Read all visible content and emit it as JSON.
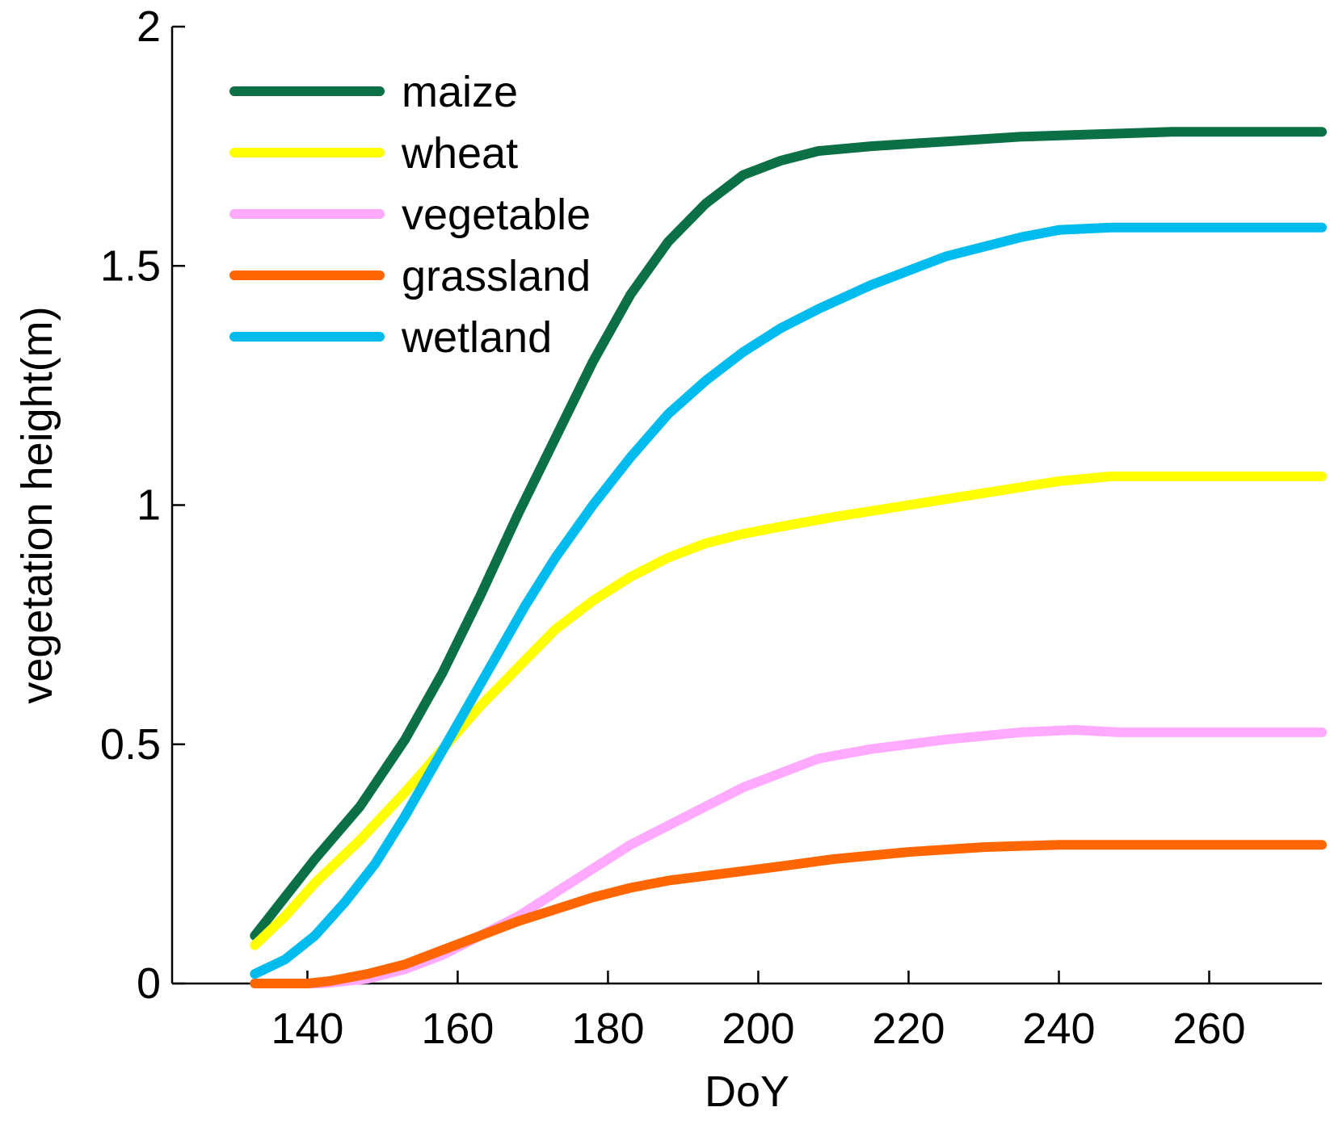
{
  "chart_data": {
    "type": "line",
    "title": "",
    "xlabel": "DoY",
    "ylabel": "vegetation height(m)",
    "xlim": [
      122,
      275
    ],
    "ylim": [
      0,
      2
    ],
    "xticks": [
      140,
      160,
      180,
      200,
      220,
      240,
      260
    ],
    "yticks": [
      0,
      0.5,
      1,
      1.5,
      2
    ],
    "ytick_labels": [
      "0",
      "0.5",
      "1",
      "1.5",
      "2"
    ],
    "legend_position": "top-left",
    "series": [
      {
        "name": "maize",
        "color": "#0b7045",
        "x": [
          133,
          137,
          141,
          147,
          153,
          158,
          163,
          168,
          173,
          178,
          183,
          188,
          193,
          198,
          203,
          208,
          215,
          225,
          235,
          245,
          255,
          265,
          275
        ],
        "y": [
          0.1,
          0.18,
          0.26,
          0.37,
          0.51,
          0.65,
          0.81,
          0.98,
          1.14,
          1.3,
          1.44,
          1.55,
          1.63,
          1.69,
          1.72,
          1.74,
          1.75,
          1.76,
          1.77,
          1.775,
          1.78,
          1.78,
          1.78
        ]
      },
      {
        "name": "wheat",
        "color": "#ffff00",
        "x": [
          133,
          137,
          141,
          147,
          153,
          158,
          163,
          168,
          173,
          178,
          183,
          188,
          193,
          198,
          203,
          210,
          220,
          230,
          240,
          247,
          255,
          265,
          275
        ],
        "y": [
          0.08,
          0.14,
          0.21,
          0.3,
          0.4,
          0.49,
          0.58,
          0.66,
          0.74,
          0.8,
          0.85,
          0.89,
          0.92,
          0.94,
          0.955,
          0.975,
          1.0,
          1.025,
          1.05,
          1.06,
          1.06,
          1.06,
          1.06
        ]
      },
      {
        "name": "vegetable",
        "color": "#ffaaff",
        "x": [
          133,
          142,
          148,
          153,
          158,
          163,
          168,
          173,
          178,
          183,
          188,
          193,
          198,
          203,
          208,
          215,
          225,
          235,
          242,
          248,
          255,
          265,
          275
        ],
        "y": [
          0.0,
          0.0,
          0.01,
          0.03,
          0.06,
          0.1,
          0.14,
          0.19,
          0.24,
          0.29,
          0.33,
          0.37,
          0.41,
          0.44,
          0.47,
          0.49,
          0.51,
          0.525,
          0.53,
          0.525,
          0.525,
          0.525,
          0.525
        ]
      },
      {
        "name": "grassland",
        "color": "#ff6600",
        "x": [
          133,
          140,
          143,
          148,
          153,
          158,
          163,
          168,
          173,
          178,
          183,
          188,
          193,
          198,
          203,
          210,
          220,
          230,
          240,
          250,
          260,
          275
        ],
        "y": [
          0.0,
          0.0,
          0.005,
          0.02,
          0.04,
          0.07,
          0.1,
          0.13,
          0.155,
          0.18,
          0.2,
          0.215,
          0.225,
          0.235,
          0.245,
          0.26,
          0.275,
          0.285,
          0.29,
          0.29,
          0.29,
          0.29
        ]
      },
      {
        "name": "wetland",
        "color": "#00bbee",
        "x": [
          133,
          137,
          141,
          145,
          149,
          153,
          157,
          161,
          165,
          169,
          173,
          178,
          183,
          188,
          193,
          198,
          203,
          208,
          215,
          225,
          235,
          240,
          247,
          255,
          265,
          275
        ],
        "y": [
          0.02,
          0.05,
          0.1,
          0.17,
          0.25,
          0.35,
          0.46,
          0.57,
          0.68,
          0.79,
          0.89,
          1.0,
          1.1,
          1.19,
          1.26,
          1.32,
          1.37,
          1.41,
          1.46,
          1.52,
          1.56,
          1.575,
          1.58,
          1.58,
          1.58,
          1.58
        ]
      }
    ]
  }
}
